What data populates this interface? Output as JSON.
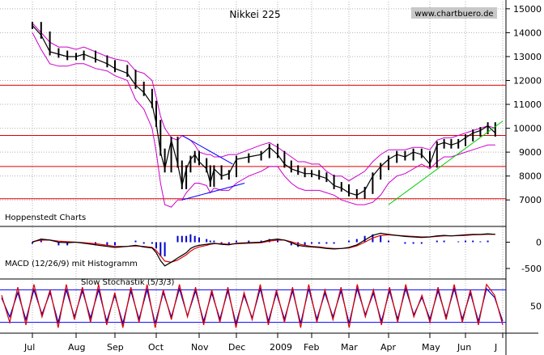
{
  "chart_data": {
    "type": "candlestick_with_indicators",
    "title": "Nikkei 225",
    "watermark": "www.chartbuero.de",
    "source_label": "Hoppenstedt Charts",
    "x_months": [
      "Jul",
      "Aug",
      "Sep",
      "Oct",
      "Nov",
      "Dec",
      "2009",
      "Feb",
      "Mar",
      "Apr",
      "May",
      "Jun",
      "J"
    ],
    "price_panel": {
      "y_ticks": [
        7000,
        8000,
        9000,
        10000,
        11000,
        12000,
        13000,
        14000,
        15000
      ],
      "ylim": [
        6500,
        15300
      ],
      "close_series": {
        "name": "close",
        "x_month_index": [
          0,
          0.2,
          0.4,
          0.6,
          0.8,
          1.0,
          1.2,
          1.5,
          1.8,
          2.0,
          2.3,
          2.5,
          2.7,
          2.9,
          3.0,
          3.1,
          3.2,
          3.35,
          3.5,
          3.6,
          3.7,
          3.8,
          3.9,
          4.0,
          4.2,
          4.3,
          4.4,
          4.6,
          4.8,
          5.0,
          5.3,
          5.6,
          5.8,
          6.0,
          6.2,
          6.4,
          6.6,
          6.8,
          7.0,
          7.2,
          7.4,
          7.6,
          7.8,
          8.0,
          8.2,
          8.4,
          8.6,
          8.8,
          9.0,
          9.2,
          9.4,
          9.6,
          9.8,
          10.0,
          10.2,
          10.4,
          10.6,
          10.8,
          11.0,
          11.2,
          11.4,
          11.6,
          11.8
        ],
        "values": [
          14300,
          13900,
          13200,
          13100,
          13000,
          13000,
          13100,
          12900,
          12700,
          12500,
          12300,
          11800,
          11500,
          11000,
          10200,
          9000,
          8300,
          9500,
          8500,
          7600,
          8300,
          8700,
          8900,
          8600,
          8300,
          7700,
          8300,
          8000,
          8100,
          8700,
          8800,
          8900,
          9200,
          8900,
          8500,
          8300,
          8200,
          8100,
          8100,
          8000,
          7900,
          7600,
          7500,
          7300,
          7200,
          7400,
          8000,
          8400,
          8700,
          8900,
          8800,
          9000,
          8900,
          8500,
          9300,
          9400,
          9300,
          9400,
          9600,
          9800,
          9900,
          10100,
          9800
        ]
      },
      "bollinger_upper": [
        14400,
        14000,
        13600,
        13400,
        13400,
        13300,
        13400,
        13200,
        13000,
        12900,
        12800,
        12400,
        12300,
        12000,
        11300,
        10500,
        10000,
        9600,
        9500,
        9700,
        9600,
        9500,
        9300,
        9000,
        8900,
        8900,
        8800,
        8800,
        8900,
        8900,
        9100,
        9300,
        9400,
        9200,
        9000,
        8800,
        8600,
        8600,
        8500,
        8500,
        8200,
        8000,
        8000,
        7800,
        8000,
        8200,
        8600,
        8900,
        9100,
        9100,
        9100,
        9200,
        9200,
        9100,
        9500,
        9600,
        9600,
        9700,
        9800,
        9900,
        10000,
        10100,
        10000
      ],
      "bollinger_lower": [
        14000,
        13300,
        12700,
        12600,
        12600,
        12700,
        12700,
        12500,
        12400,
        12200,
        12000,
        11200,
        10800,
        10000,
        9000,
        7700,
        6800,
        6700,
        7000,
        7000,
        7300,
        7500,
        7700,
        7700,
        7600,
        7300,
        7500,
        7400,
        7400,
        7700,
        8000,
        8200,
        8400,
        8400,
        8000,
        7700,
        7500,
        7400,
        7400,
        7400,
        7300,
        7200,
        7000,
        6900,
        6800,
        6800,
        6900,
        7200,
        7700,
        8000,
        8100,
        8300,
        8500,
        8300,
        8600,
        8800,
        8800,
        8900,
        9000,
        9100,
        9200,
        9300,
        9300
      ],
      "support_resistance_levels": [
        11800,
        9700,
        8400,
        7050
      ],
      "trendlines": [
        {
          "name": "rising support",
          "color": "#00cc00",
          "points": [
            [
              9.0,
              6800
            ],
            [
              12.4,
              10300
            ]
          ]
        },
        {
          "name": "triangle upper",
          "color": "#0000ff",
          "points": [
            [
              3.6,
              9700
            ],
            [
              4.9,
              8500
            ]
          ]
        },
        {
          "name": "triangle lower",
          "color": "#0000ff",
          "points": [
            [
              3.6,
              7000
            ],
            [
              5.2,
              7700
            ]
          ]
        }
      ]
    },
    "macd_panel": {
      "label": "MACD (12/26/9) mit Histogramm",
      "y_ticks": [
        0,
        -500
      ],
      "ylim": [
        -700,
        300
      ],
      "macd": [
        0,
        60,
        40,
        0,
        -10,
        0,
        -20,
        -50,
        -80,
        -100,
        -80,
        -60,
        -90,
        -110,
        -200,
        -350,
        -450,
        -380,
        -300,
        -250,
        -200,
        -120,
        -80,
        -60,
        -40,
        -30,
        -20,
        -40,
        -50,
        -20,
        -10,
        0,
        40,
        60,
        40,
        -10,
        -60,
        -80,
        -90,
        -100,
        -120,
        -130,
        -120,
        -100,
        -50,
        40,
        130,
        170,
        150,
        130,
        110,
        100,
        90,
        100,
        120,
        130,
        120,
        130,
        140,
        150,
        150,
        160,
        150
      ],
      "signal": [
        10,
        40,
        40,
        20,
        10,
        0,
        -10,
        -30,
        -60,
        -80,
        -80,
        -70,
        -80,
        -100,
        -160,
        -260,
        -360,
        -380,
        -340,
        -290,
        -240,
        -170,
        -120,
        -90,
        -60,
        -40,
        -30,
        -30,
        -40,
        -30,
        -20,
        -10,
        20,
        40,
        40,
        10,
        -30,
        -60,
        -80,
        -90,
        -110,
        -120,
        -120,
        -110,
        -70,
        0,
        80,
        130,
        140,
        130,
        120,
        110,
        100,
        100,
        110,
        120,
        120,
        125,
        130,
        140,
        145,
        150,
        150
      ]
    },
    "stochastic_panel": {
      "label": "Slow Stochastik (5/3/3)",
      "y_ticks": [
        50
      ],
      "ylim": [
        0,
        100
      ],
      "levels": [
        80,
        20
      ],
      "k": [
        70,
        20,
        85,
        15,
        90,
        30,
        80,
        10,
        90,
        25,
        85,
        20,
        90,
        15,
        75,
        10,
        85,
        20,
        90,
        10,
        80,
        25,
        90,
        30,
        85,
        15,
        80,
        20,
        85,
        10,
        75,
        25,
        90,
        15,
        80,
        20,
        85,
        10,
        90,
        20,
        80,
        25,
        85,
        10,
        90,
        30,
        80,
        15,
        85,
        20,
        90,
        30,
        70,
        20,
        85,
        25,
        90,
        20,
        80,
        15,
        90,
        70,
        15
      ],
      "d": [
        65,
        30,
        75,
        25,
        80,
        35,
        75,
        20,
        80,
        30,
        78,
        28,
        80,
        22,
        70,
        18,
        78,
        26,
        80,
        18,
        75,
        30,
        82,
        32,
        78,
        22,
        74,
        26,
        78,
        18,
        70,
        28,
        82,
        22,
        74,
        26,
        78,
        18,
        82,
        26,
        74,
        30,
        78,
        18,
        82,
        34,
        74,
        22,
        78,
        26,
        82,
        34,
        66,
        26,
        78,
        30,
        82,
        26,
        74,
        22,
        82,
        66,
        22
      ]
    },
    "colors": {
      "price": "#000000",
      "bollinger": "#cc00cc",
      "levels": "#dd0000",
      "macd": "#000000",
      "signal": "#dd0000",
      "histogram": "#0000cc",
      "stoch_k": "#dd0000",
      "stoch_d": "#0000cc",
      "stoch_levels": "#0000ff",
      "grid": "#b0b0b0"
    }
  }
}
